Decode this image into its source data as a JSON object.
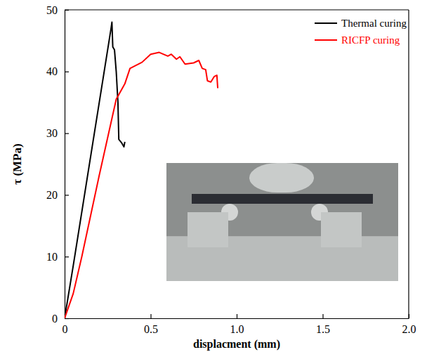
{
  "chart_data": {
    "type": "line",
    "x_label": "displacment (mm)",
    "y_label": "τ (MPa)",
    "xlim": [
      0,
      2.0
    ],
    "ylim": [
      0,
      50
    ],
    "xticks": [
      0,
      0.5,
      {
        "value": 1.0,
        "label": "1.0"
      },
      1.5,
      {
        "value": 2.0,
        "label": "2.0"
      }
    ],
    "yticks": [
      0,
      10,
      20,
      30,
      40,
      50
    ],
    "legend": "upper right",
    "series": [
      {
        "name": "Thermal curing",
        "color": "#000000",
        "x": [
          0,
          0.05,
          0.27,
          0.275,
          0.28,
          0.29,
          0.3,
          0.31,
          0.315,
          0.33,
          0.345,
          0.35
        ],
        "values": [
          0,
          8.5,
          47,
          48,
          44,
          43.5,
          40,
          35,
          29,
          28.5,
          27.8,
          28.6
        ]
      },
      {
        "name": "RICFP curing",
        "color": "#ff0000",
        "x": [
          0,
          0.05,
          0.1,
          0.2,
          0.3,
          0.35,
          0.38,
          0.4,
          0.45,
          0.5,
          0.55,
          0.6,
          0.62,
          0.65,
          0.67,
          0.7,
          0.75,
          0.78,
          0.8,
          0.82,
          0.83,
          0.85,
          0.87,
          0.885,
          0.89
        ],
        "values": [
          0,
          4,
          10,
          23,
          35.5,
          38,
          40.5,
          40.8,
          41.5,
          42.8,
          43.1,
          42.5,
          42.8,
          42,
          42.4,
          41.2,
          41.4,
          41.8,
          40.5,
          40.3,
          38.5,
          38.3,
          39.2,
          39.4,
          37.3
        ]
      }
    ]
  }
}
